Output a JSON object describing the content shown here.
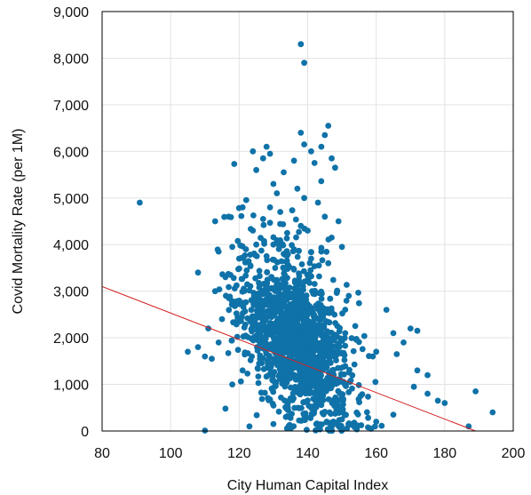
{
  "chart_data": {
    "type": "scatter",
    "title": "",
    "xlabel": "City Human Capital Index",
    "ylabel": "Covid Mortality Rate (per 1M)",
    "xlim": [
      80,
      200
    ],
    "ylim": [
      0,
      9000
    ],
    "x_ticks": [
      "80",
      "100",
      "120",
      "140",
      "160",
      "180",
      "200"
    ],
    "y_ticks": [
      "0",
      "1,000",
      "2,000",
      "3,000",
      "4,000",
      "5,000",
      "6,000",
      "7,000",
      "8,000",
      "9,000"
    ],
    "x_tick_values": [
      80,
      100,
      120,
      140,
      160,
      180,
      200
    ],
    "y_tick_values": [
      0,
      1000,
      2000,
      3000,
      4000,
      5000,
      6000,
      7000,
      8000,
      9000
    ],
    "grid": true,
    "legend": "none",
    "colors": {
      "points": "#0f72a8",
      "trendline": "#d42020",
      "grid": "#e3e3e3",
      "frame": "#000000"
    },
    "series": [
      {
        "values": [
          [
            91,
            4900
          ],
          [
            138,
            8300
          ],
          [
            139,
            7900
          ],
          [
            146,
            6550
          ],
          [
            138,
            6400
          ],
          [
            145,
            6350
          ],
          [
            128,
            6100
          ],
          [
            124,
            6000
          ],
          [
            139,
            6150
          ],
          [
            141,
            6000
          ],
          [
            129,
            5950
          ],
          [
            144,
            6100
          ],
          [
            136,
            5800
          ],
          [
            142,
            5750
          ],
          [
            148,
            5650
          ],
          [
            147,
            5850
          ],
          [
            127,
            5850
          ],
          [
            125,
            5600
          ],
          [
            133,
            5550
          ],
          [
            130,
            5300
          ],
          [
            137,
            5200
          ],
          [
            131,
            5100
          ],
          [
            139,
            5000
          ],
          [
            143,
            4900
          ],
          [
            121,
            4800
          ],
          [
            129,
            4800
          ],
          [
            132,
            4700
          ],
          [
            145,
            4600
          ],
          [
            149,
            4500
          ],
          [
            127,
            4550
          ],
          [
            113,
            4500
          ],
          [
            138,
            4400
          ],
          [
            140,
            4300
          ],
          [
            124,
            4300
          ],
          [
            134,
            4250
          ],
          [
            147,
            4150
          ],
          [
            118,
            3950
          ],
          [
            122,
            3900
          ],
          [
            125,
            4000
          ],
          [
            130,
            4000
          ],
          [
            136,
            3900
          ],
          [
            144,
            3850
          ],
          [
            150,
            3950
          ],
          [
            114,
            3850
          ],
          [
            120,
            3700
          ],
          [
            128,
            3750
          ],
          [
            133,
            3800
          ],
          [
            141,
            3700
          ],
          [
            146,
            3600
          ],
          [
            108,
            3400
          ],
          [
            116,
            3300
          ],
          [
            113,
            3000
          ],
          [
            152,
            2900
          ],
          [
            163,
            2600
          ],
          [
            117,
            2850
          ],
          [
            115,
            2400
          ],
          [
            111,
            2200
          ],
          [
            105,
            1700
          ],
          [
            108,
            1800
          ],
          [
            110,
            1600
          ],
          [
            112,
            1550
          ],
          [
            114,
            1900
          ],
          [
            165,
            2100
          ],
          [
            170,
            2200
          ],
          [
            172,
            2150
          ],
          [
            168,
            1900
          ],
          [
            166,
            1650
          ],
          [
            160,
            1700
          ],
          [
            159,
            1600
          ],
          [
            172,
            1300
          ],
          [
            175,
            1200
          ],
          [
            180,
            600
          ],
          [
            178,
            650
          ],
          [
            175,
            800
          ],
          [
            171,
            950
          ],
          [
            189,
            850
          ],
          [
            194,
            400
          ],
          [
            187,
            100
          ],
          [
            121,
            1300
          ],
          [
            118,
            1000
          ],
          [
            116,
            480
          ],
          [
            110,
            10
          ],
          [
            123,
            100
          ],
          [
            130,
            150
          ],
          [
            150,
            250
          ],
          [
            160,
            200
          ],
          [
            165,
            350
          ]
        ],
        "approximate_points": 1500
      }
    ],
    "trendline": {
      "type": "linear",
      "from": [
        80,
        3100
      ],
      "to": [
        189,
        0
      ]
    }
  }
}
